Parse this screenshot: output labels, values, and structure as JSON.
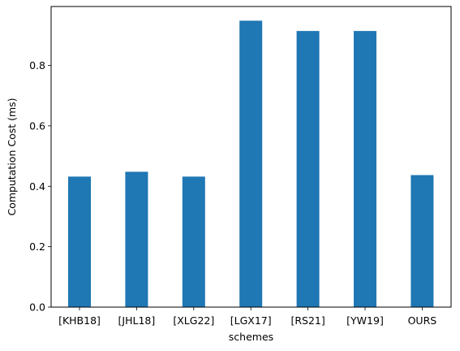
{
  "chart_data": {
    "type": "bar",
    "title": "",
    "xlabel": "schemes",
    "ylabel": "Computation Cost (ms)",
    "categories": [
      "[KHB18]",
      "[JHL18]",
      "[XLG22]",
      "[LGX17]",
      "[RS21]",
      "[YW19]",
      "OURS"
    ],
    "values": [
      0.432,
      0.448,
      0.432,
      0.948,
      0.914,
      0.914,
      0.437
    ],
    "ylim": [
      0,
      0.995
    ],
    "yticks": [
      0.0,
      0.2,
      0.4,
      0.6,
      0.8
    ],
    "ytick_labels": [
      "0.0",
      "0.2",
      "0.4",
      "0.6",
      "0.8"
    ],
    "bar_color": "#1f77b4",
    "grid": false,
    "legend": "none"
  }
}
